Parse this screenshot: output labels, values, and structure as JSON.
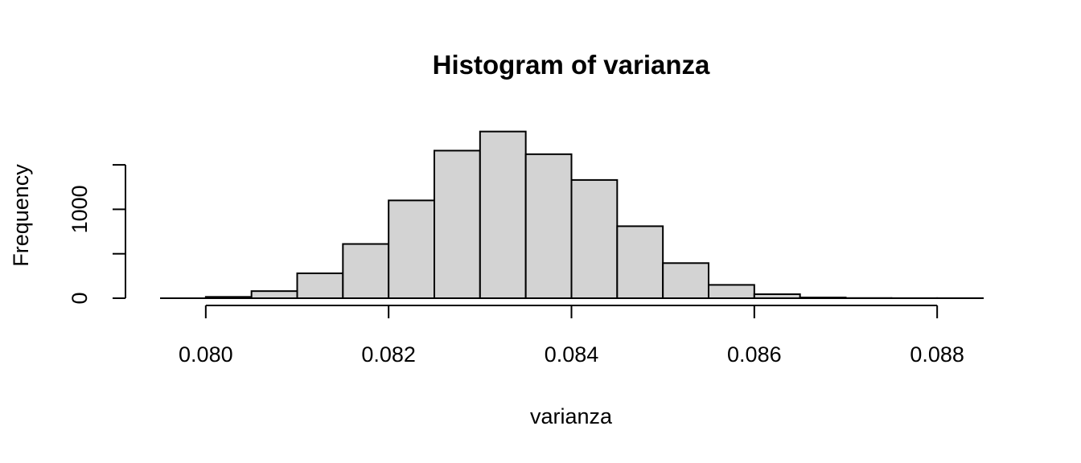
{
  "chart_data": {
    "type": "bar",
    "title": "Histogram of varianza",
    "xlabel": "varianza",
    "ylabel": "Frequency",
    "xlim": [
      0.0795,
      0.0885
    ],
    "ylim": [
      0,
      1900
    ],
    "x_ticks": [
      {
        "value": 0.08,
        "label": "0.080"
      },
      {
        "value": 0.082,
        "label": "0.082"
      },
      {
        "value": 0.084,
        "label": "0.084"
      },
      {
        "value": 0.086,
        "label": "0.086"
      },
      {
        "value": 0.088,
        "label": "0.088"
      }
    ],
    "y_ticks": [
      {
        "value": 0,
        "label": "0"
      },
      {
        "value": 500,
        "label": ""
      },
      {
        "value": 1000,
        "label": "1000"
      },
      {
        "value": 1500,
        "label": ""
      }
    ],
    "bins": [
      {
        "start": 0.08,
        "end": 0.0805,
        "count": 15
      },
      {
        "start": 0.0805,
        "end": 0.081,
        "count": 80
      },
      {
        "start": 0.081,
        "end": 0.0815,
        "count": 280
      },
      {
        "start": 0.0815,
        "end": 0.082,
        "count": 610
      },
      {
        "start": 0.082,
        "end": 0.0825,
        "count": 1100
      },
      {
        "start": 0.0825,
        "end": 0.083,
        "count": 1660
      },
      {
        "start": 0.083,
        "end": 0.0835,
        "count": 1875
      },
      {
        "start": 0.0835,
        "end": 0.084,
        "count": 1620
      },
      {
        "start": 0.084,
        "end": 0.0845,
        "count": 1330
      },
      {
        "start": 0.0845,
        "end": 0.085,
        "count": 810
      },
      {
        "start": 0.085,
        "end": 0.0855,
        "count": 395
      },
      {
        "start": 0.0855,
        "end": 0.086,
        "count": 150
      },
      {
        "start": 0.086,
        "end": 0.0865,
        "count": 45
      },
      {
        "start": 0.0865,
        "end": 0.087,
        "count": 8
      },
      {
        "start": 0.087,
        "end": 0.0875,
        "count": 2
      },
      {
        "start": 0.0875,
        "end": 0.088,
        "count": 1
      },
      {
        "start": 0.088,
        "end": 0.0885,
        "count": 1
      }
    ],
    "bar_fill": "#d3d3d3",
    "bar_stroke": "#000000",
    "grid": false,
    "legend": "none"
  }
}
